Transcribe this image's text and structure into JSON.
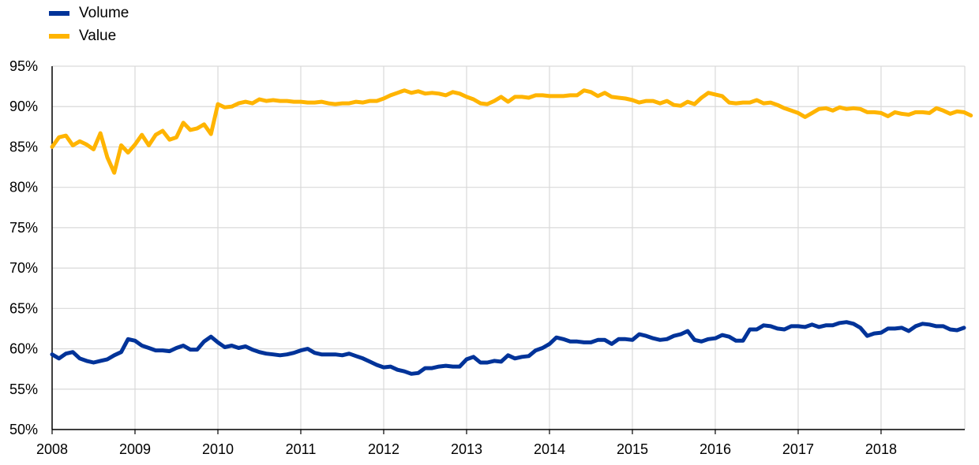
{
  "chart_data": {
    "type": "line",
    "title": "",
    "xlabel": "",
    "ylabel": "",
    "ylim": [
      50,
      95
    ],
    "y_ticks": [
      "50%",
      "55%",
      "60%",
      "65%",
      "70%",
      "75%",
      "80%",
      "85%",
      "90%",
      "95%"
    ],
    "x_ticks": [
      "2008",
      "2009",
      "2010",
      "2011",
      "2012",
      "2013",
      "2014",
      "2015",
      "2016",
      "2017",
      "2018"
    ],
    "grid": "vertical-at-years-and-horizontal",
    "legend_position": "top-left",
    "x_start": "2008-01",
    "series": [
      {
        "name": "Volume",
        "color": "#003399",
        "values": [
          59.3,
          58.8,
          59.4,
          59.6,
          58.8,
          58.5,
          58.3,
          58.5,
          58.7,
          59.2,
          59.6,
          61.2,
          61.0,
          60.4,
          60.1,
          59.8,
          59.8,
          59.7,
          60.1,
          60.4,
          59.9,
          59.9,
          60.9,
          61.5,
          60.8,
          60.2,
          60.4,
          60.1,
          60.3,
          59.9,
          59.6,
          59.4,
          59.3,
          59.2,
          59.3,
          59.5,
          59.8,
          60.0,
          59.5,
          59.3,
          59.3,
          59.3,
          59.2,
          59.4,
          59.1,
          58.8,
          58.4,
          58.0,
          57.7,
          57.8,
          57.4,
          57.2,
          56.9,
          57.0,
          57.6,
          57.6,
          57.8,
          57.9,
          57.8,
          57.8,
          58.7,
          59.0,
          58.3,
          58.3,
          58.5,
          58.4,
          59.2,
          58.8,
          59.0,
          59.1,
          59.8,
          60.1,
          60.6,
          61.4,
          61.2,
          60.9,
          60.9,
          60.8,
          60.8,
          61.1,
          61.1,
          60.6,
          61.2,
          61.2,
          61.1,
          61.8,
          61.6,
          61.3,
          61.1,
          61.2,
          61.6,
          61.8,
          62.2,
          61.1,
          60.9,
          61.2,
          61.3,
          61.7,
          61.5,
          61.0,
          61.0,
          62.4,
          62.4,
          62.9,
          62.8,
          62.5,
          62.4,
          62.8,
          62.8,
          62.7,
          63.0,
          62.7,
          62.9,
          62.9,
          63.2,
          63.3,
          63.1,
          62.6,
          61.6,
          61.9,
          62.0,
          62.5,
          62.5,
          62.6,
          62.2,
          62.8,
          63.1,
          63.0,
          62.8,
          62.8,
          62.4,
          62.3,
          62.6
        ]
      },
      {
        "name": "Value",
        "color": "#FFB400",
        "values": [
          85.0,
          86.2,
          86.4,
          85.2,
          85.7,
          85.3,
          84.7,
          86.7,
          83.7,
          81.8,
          85.2,
          84.3,
          85.3,
          86.5,
          85.2,
          86.5,
          87.0,
          85.9,
          86.2,
          88.0,
          87.1,
          87.3,
          87.8,
          86.6,
          90.3,
          89.9,
          90.0,
          90.4,
          90.6,
          90.4,
          90.9,
          90.7,
          90.8,
          90.7,
          90.7,
          90.6,
          90.6,
          90.5,
          90.5,
          90.6,
          90.4,
          90.3,
          90.4,
          90.4,
          90.6,
          90.5,
          90.7,
          90.7,
          91.0,
          91.4,
          91.7,
          92.0,
          91.7,
          91.9,
          91.6,
          91.7,
          91.6,
          91.4,
          91.8,
          91.6,
          91.2,
          90.9,
          90.4,
          90.3,
          90.7,
          91.2,
          90.6,
          91.2,
          91.2,
          91.1,
          91.4,
          91.4,
          91.3,
          91.3,
          91.3,
          91.4,
          91.4,
          92.0,
          91.8,
          91.3,
          91.7,
          91.2,
          91.1,
          91.0,
          90.8,
          90.5,
          90.7,
          90.7,
          90.4,
          90.7,
          90.2,
          90.1,
          90.6,
          90.3,
          91.1,
          91.7,
          91.5,
          91.3,
          90.5,
          90.4,
          90.5,
          90.5,
          90.8,
          90.4,
          90.5,
          90.2,
          89.8,
          89.5,
          89.2,
          88.7,
          89.2,
          89.7,
          89.8,
          89.5,
          89.9,
          89.7,
          89.8,
          89.7,
          89.3,
          89.3,
          89.2,
          88.8,
          89.3,
          89.1,
          89.0,
          89.3,
          89.3,
          89.2,
          89.8,
          89.5,
          89.1,
          89.4,
          89.3,
          88.9
        ]
      }
    ]
  }
}
